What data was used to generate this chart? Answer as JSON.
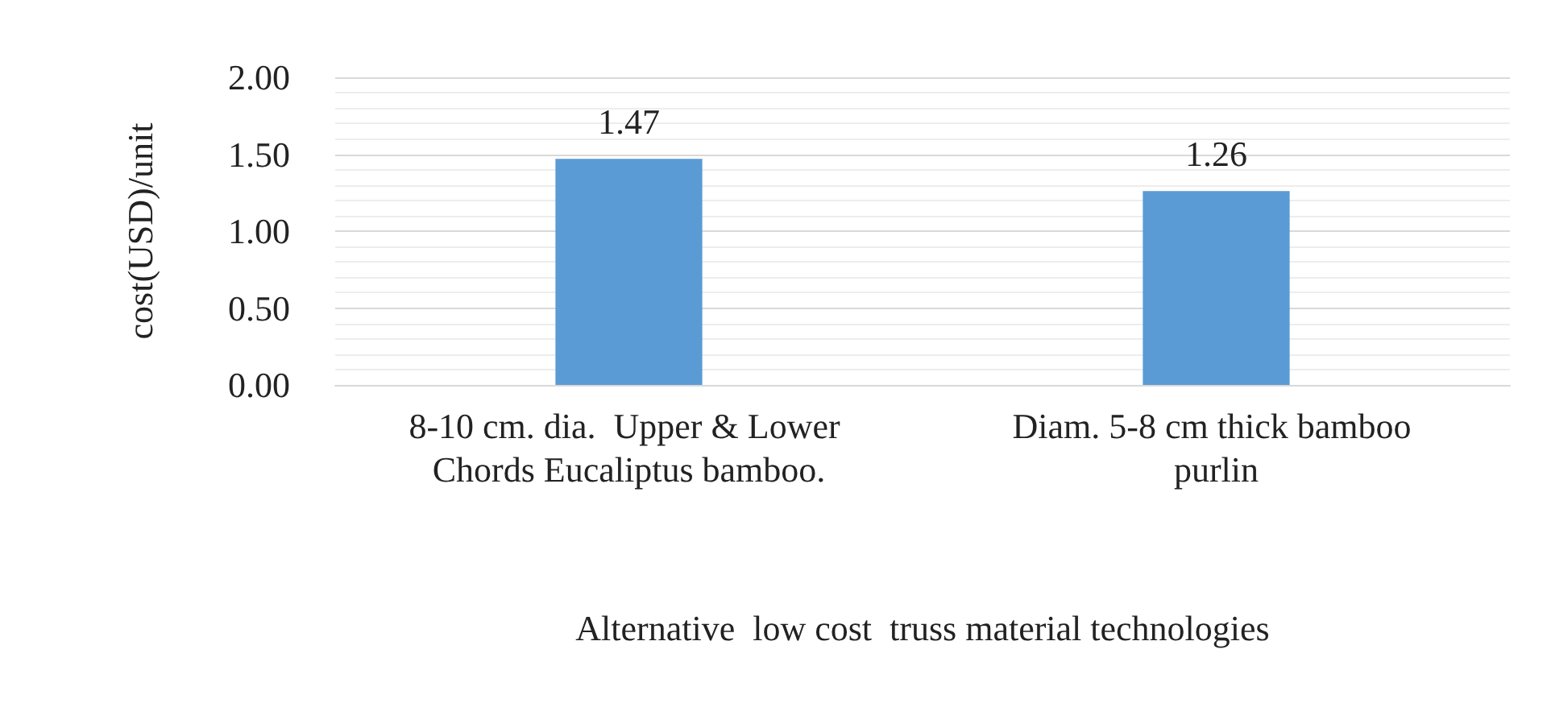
{
  "chart_data": {
    "type": "bar",
    "xlabel": "Alternative  low cost  truss material technologies",
    "ylabel": "cost(USD)/unit",
    "categories": [
      "8-10 cm. dia.  Upper & Lower Chords Eucaliptus bamboo.",
      "Diam. 5-8 cm thick bamboo purlin"
    ],
    "values": [
      1.47,
      1.26
    ],
    "color": "#5b9bd5",
    "data_labels": true,
    "ylim": [
      0,
      2
    ],
    "yticks": [
      {
        "value": 0,
        "label": "0.00"
      },
      {
        "value": 0.5,
        "label": "0.50"
      },
      {
        "value": 1,
        "label": "1.00"
      },
      {
        "value": 1.5,
        "label": "1.50"
      },
      {
        "value": 2,
        "label": "2.00"
      }
    ],
    "grid": "y"
  }
}
